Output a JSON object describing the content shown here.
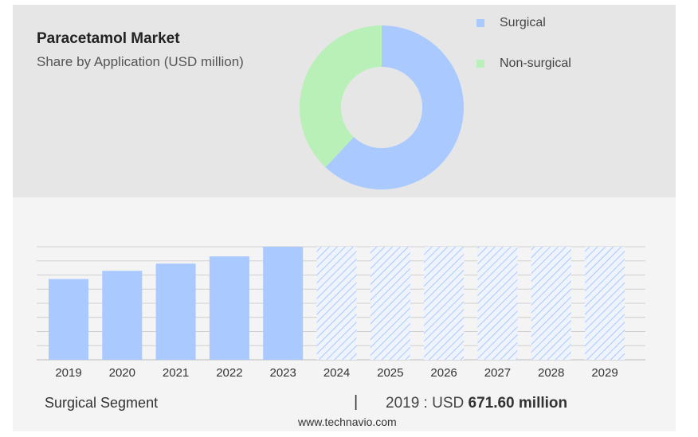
{
  "header": {
    "title": "Paracetamol Market",
    "subtitle": "Share by Application (USD million)"
  },
  "legend": {
    "items": [
      {
        "label": "Surgical",
        "color": "#a9c9ff"
      },
      {
        "label": "Non-surgical",
        "color": "#b8f0b8"
      }
    ]
  },
  "chart_data": [
    {
      "type": "pie",
      "donut": true,
      "categories": [
        "Surgical",
        "Non-surgical"
      ],
      "values": [
        62,
        38
      ],
      "colors": [
        "#a9c9ff",
        "#b8f0b8"
      ],
      "legend": "top-right"
    },
    {
      "type": "bar",
      "categories": [
        "2019",
        "2020",
        "2021",
        "2022",
        "2023",
        "2024",
        "2025",
        "2026",
        "2027",
        "2028",
        "2029"
      ],
      "values": [
        671.6,
        740,
        800,
        860,
        940,
        940,
        940,
        940,
        940,
        940,
        940
      ],
      "forecast_from": "2024",
      "ylim": [
        0,
        940
      ],
      "grid": true,
      "color": "#a9c9ff"
    }
  ],
  "summary": {
    "segment": "Surgical Segment",
    "divider": "|",
    "year_prefix": "2019 : USD ",
    "value": "671.60 million"
  },
  "footer": {
    "source": "www.technavio.com"
  }
}
